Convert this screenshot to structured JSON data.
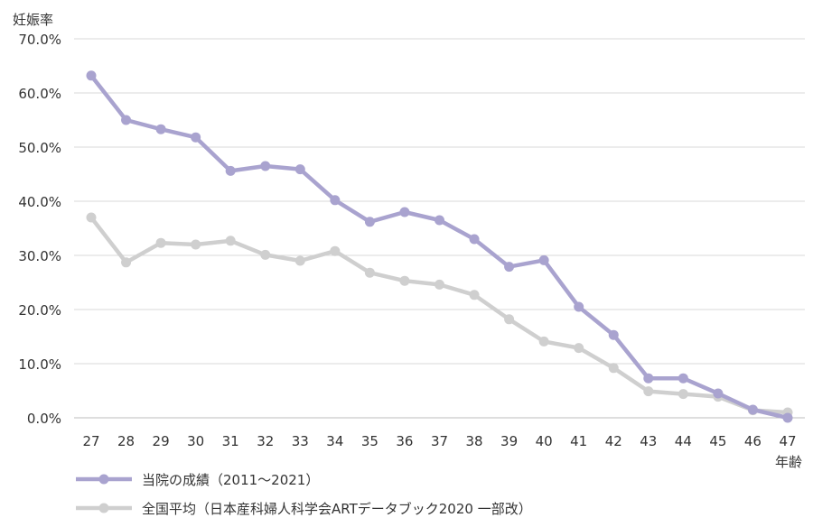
{
  "chart_data": {
    "type": "line",
    "ylabel": "妊娠率",
    "xlabel": "年齢",
    "categories": [
      "27",
      "28",
      "29",
      "30",
      "31",
      "32",
      "33",
      "34",
      "35",
      "36",
      "37",
      "38",
      "39",
      "40",
      "41",
      "42",
      "43",
      "44",
      "45",
      "46",
      "47"
    ],
    "ylim": [
      0,
      70
    ],
    "y_ticks": [
      "0.0%",
      "10.0%",
      "20.0%",
      "30.0%",
      "40.0%",
      "50.0%",
      "60.0%",
      "70.0%"
    ],
    "grid": true,
    "legend_position": "bottom-left",
    "series": [
      {
        "name": "当院の成績（2011～2021）",
        "color": "#a9a3cf",
        "values": [
          63.2,
          55.0,
          53.3,
          51.8,
          45.6,
          46.5,
          45.9,
          40.2,
          36.2,
          38.0,
          36.5,
          33.0,
          27.9,
          29.1,
          20.5,
          15.3,
          7.3,
          7.3,
          4.5,
          1.5,
          0.0
        ]
      },
      {
        "name": "全国平均（日本産科婦人科学会ARTデータブック2020 一部改）",
        "color": "#cfcfcf",
        "values": [
          37.0,
          28.7,
          32.3,
          32.0,
          32.7,
          30.1,
          29.0,
          30.8,
          26.8,
          25.3,
          24.6,
          22.7,
          18.2,
          14.1,
          12.9,
          9.2,
          4.9,
          4.4,
          3.9,
          1.4,
          1.0
        ]
      }
    ]
  }
}
